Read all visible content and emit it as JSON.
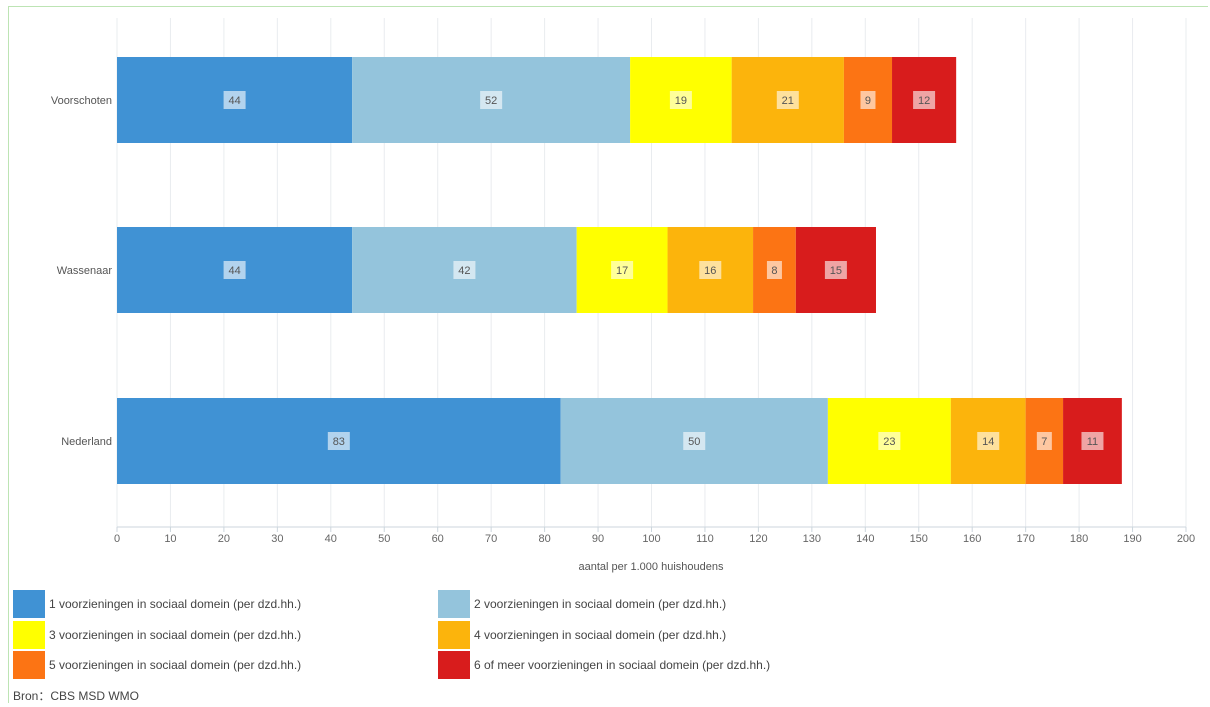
{
  "chart_data": {
    "type": "bar",
    "orientation": "horizontal",
    "stacked": true,
    "categories": [
      "Voorschoten",
      "Wassenaar",
      "Nederland"
    ],
    "series": [
      {
        "name": "1 voorzieningen in sociaal domein (per dzd.hh.)",
        "color": "#4092d4",
        "values": [
          44,
          44,
          83
        ]
      },
      {
        "name": "2 voorzieningen in sociaal domein (per dzd.hh.)",
        "color": "#94c4dc",
        "values": [
          52,
          42,
          50
        ]
      },
      {
        "name": "3 voorzieningen in sociaal domein (per dzd.hh.)",
        "color": "#ffff00",
        "values": [
          19,
          17,
          23
        ]
      },
      {
        "name": "4 voorzieningen in sociaal domein (per dzd.hh.)",
        "color": "#fcb40c",
        "values": [
          21,
          16,
          14
        ]
      },
      {
        "name": "5 voorzieningen in sociaal domein (per dzd.hh.)",
        "color": "#fc7414",
        "values": [
          9,
          8,
          7
        ]
      },
      {
        "name": "6 of meer voorzieningen in sociaal domein (per dzd.hh.)",
        "color": "#d81c1c",
        "values": [
          12,
          15,
          11
        ]
      }
    ],
    "xlabel": "aantal per 1.000 huishoudens",
    "ylabel": "",
    "xlim": [
      0,
      200
    ],
    "xticks": [
      "0",
      "10",
      "20",
      "30",
      "40",
      "50",
      "60",
      "70",
      "80",
      "90",
      "100",
      "110",
      "120",
      "130",
      "140",
      "150",
      "160",
      "170",
      "180",
      "190",
      "200"
    ],
    "grid": true,
    "legend_position": "bottom",
    "data_labels": true
  },
  "source": "Bron：CBS MSD WMO"
}
